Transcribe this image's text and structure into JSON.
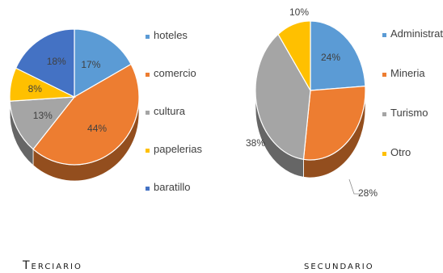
{
  "chart_data": [
    {
      "type": "pie",
      "title": "",
      "caption": "Terciario",
      "legend_position": "right",
      "labels_inside": true,
      "slices": [
        {
          "name": "hoteles",
          "value": 17,
          "label": "17%",
          "color": "#5b9bd5"
        },
        {
          "name": "comercio",
          "value": 44,
          "label": "44%",
          "color": "#ed7d31"
        },
        {
          "name": "cultura",
          "value": 13,
          "label": "13%",
          "color": "#a5a5a5"
        },
        {
          "name": "papelerias",
          "value": 8,
          "label": "8%",
          "color": "#ffc000"
        },
        {
          "name": "baratillo",
          "value": 18,
          "label": "18%",
          "color": "#4472c4"
        }
      ]
    },
    {
      "type": "pie",
      "title": "",
      "caption": "secundario",
      "legend_position": "right",
      "labels_inside": false,
      "slices": [
        {
          "name": "Administrativo",
          "value": 24,
          "label": "24%",
          "color": "#5b9bd5"
        },
        {
          "name": "Mineria",
          "value": 28,
          "label": "28%",
          "color": "#ed7d31"
        },
        {
          "name": "Turismo",
          "value": 38,
          "label": "38%",
          "color": "#a5a5a5"
        },
        {
          "name": "Otro",
          "value": 10,
          "label": "10%",
          "color": "#ffc000"
        }
      ]
    }
  ]
}
